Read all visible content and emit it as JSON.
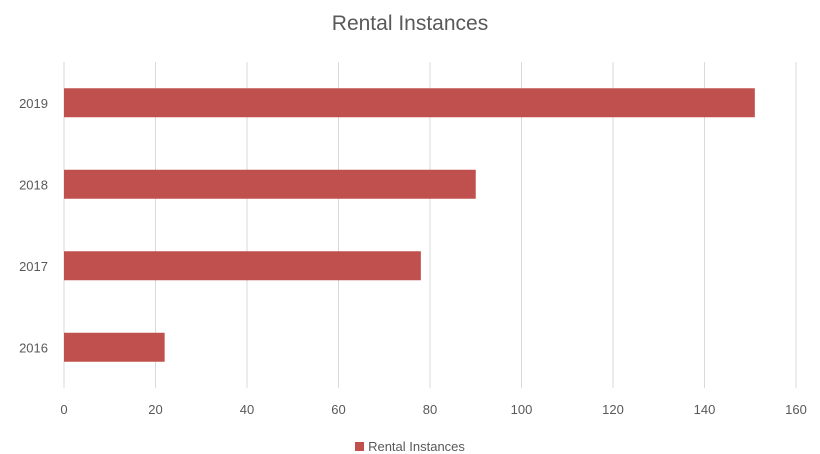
{
  "chart_data": {
    "type": "bar",
    "orientation": "horizontal",
    "title": "Rental Instances",
    "xlabel": "",
    "ylabel": "",
    "categories": [
      "2016",
      "2017",
      "2018",
      "2019"
    ],
    "series": [
      {
        "name": "Rental Instances",
        "values": [
          22,
          78,
          90,
          151
        ],
        "color": "#C0504D"
      }
    ],
    "xlim": [
      0,
      160
    ],
    "xticks": [
      "0",
      "20",
      "40",
      "60",
      "80",
      "100",
      "120",
      "140",
      "160"
    ],
    "grid": "vertical",
    "legend_position": "bottom"
  },
  "colors": {
    "bar": "#C0504D",
    "grid": "#D9D9D9",
    "text": "#595959"
  }
}
